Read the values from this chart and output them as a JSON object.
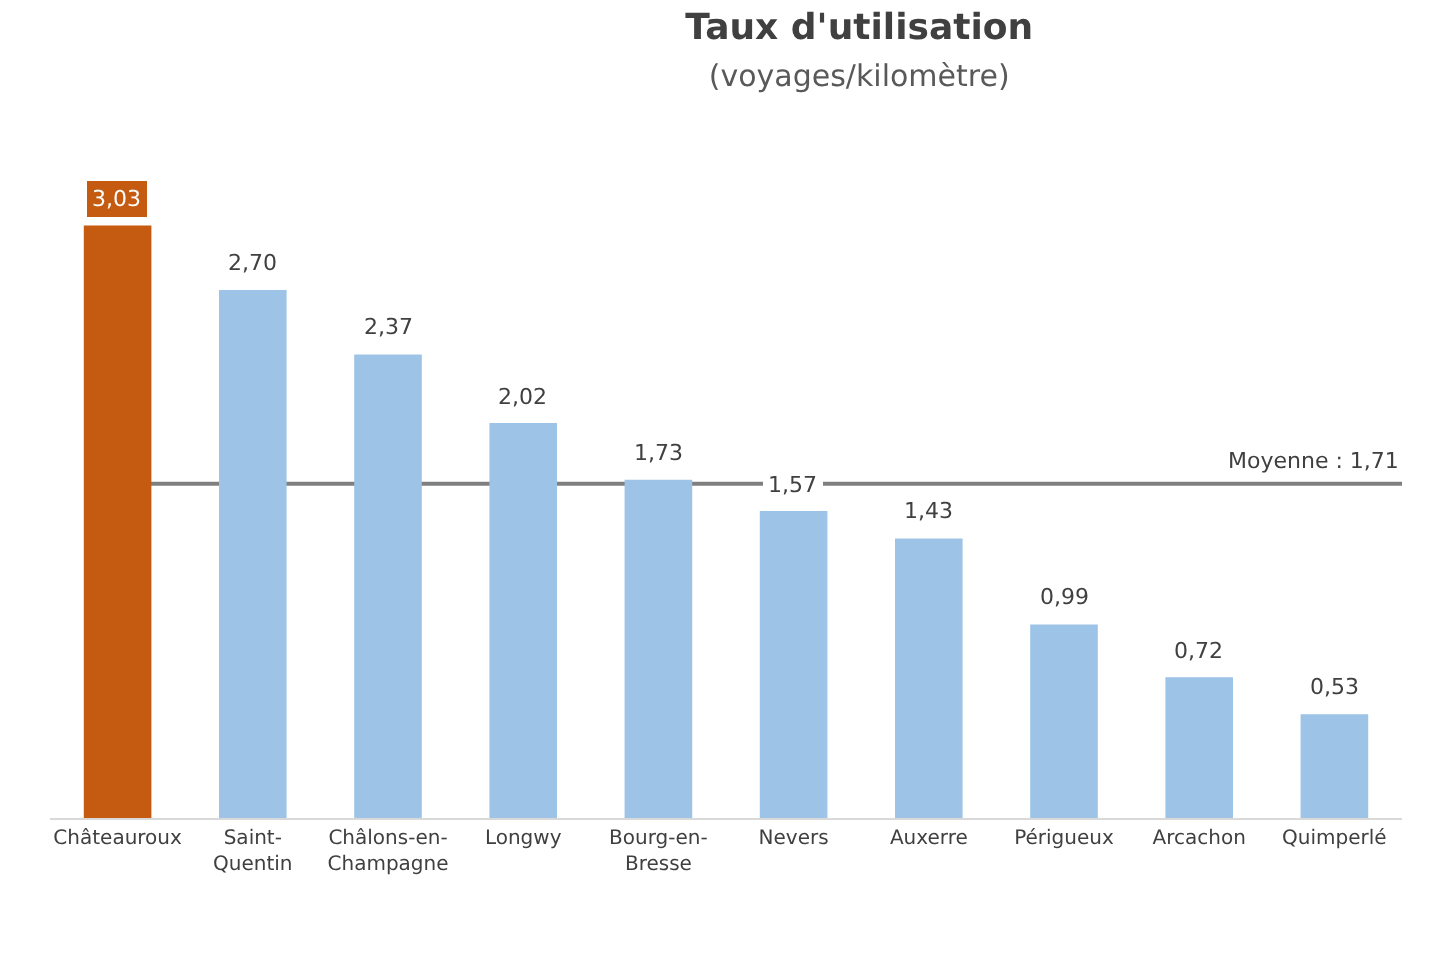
{
  "chart_data": {
    "type": "bar",
    "title": "Taux d'utilisation",
    "subtitle": "(voyages/kilomètre)",
    "categories": [
      "Châteauroux",
      "Saint-Quentin",
      "Châlons-en-Champagne",
      "Longwy",
      "Bourg-en-Bresse",
      "Nevers",
      "Auxerre",
      "Périgueux",
      "Arcachon",
      "Quimperlé"
    ],
    "values": [
      3.03,
      2.7,
      2.37,
      2.02,
      1.73,
      1.57,
      1.43,
      0.99,
      0.72,
      0.53
    ],
    "value_labels": [
      "3,03",
      "2,70",
      "2,37",
      "2,02",
      "1,73",
      "1,57",
      "1,43",
      "0,99",
      "0,72",
      "0,53"
    ],
    "colors": [
      "#c55a11",
      "#9dc3e6",
      "#9dc3e6",
      "#9dc3e6",
      "#9dc3e6",
      "#9dc3e6",
      "#9dc3e6",
      "#9dc3e6",
      "#9dc3e6",
      "#9dc3e6"
    ],
    "ref_lines": [
      {
        "axis": "y",
        "value": 1.71,
        "label": "Moyenne : 1,71",
        "color": "#7f7f7f"
      }
    ]
  }
}
